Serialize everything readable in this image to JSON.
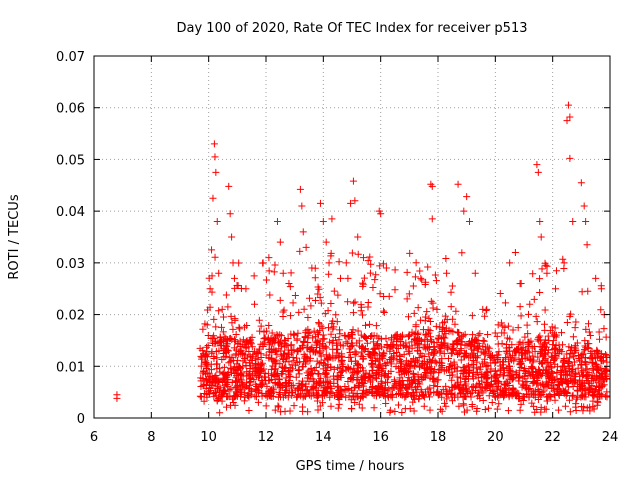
{
  "chart_data": {
    "type": "scatter",
    "title": "Day 100 of 2020, Rate Of TEC Index for receiver p513",
    "xlabel": "GPS time / hours",
    "ylabel": "ROTI / TECUs",
    "xlim": [
      6,
      24
    ],
    "ylim": [
      0,
      0.07
    ],
    "xticks": [
      "6",
      "8",
      "10",
      "12",
      "14",
      "16",
      "18",
      "20",
      "22",
      "24"
    ],
    "yticks": [
      "0",
      "0.01",
      "0.02",
      "0.03",
      "0.04",
      "0.05",
      "0.06",
      "0.07"
    ],
    "grid": true,
    "marker": "+",
    "color": "#ff0000",
    "series": [
      {
        "points": [
          [
            6.8,
            0.0045
          ],
          [
            6.8,
            0.0038
          ],
          [
            9.9,
            0.012
          ],
          [
            9.95,
            0.018
          ],
          [
            10.05,
            0.025
          ],
          [
            10.1,
            0.0325
          ],
          [
            10.15,
            0.0425
          ],
          [
            10.2,
            0.053
          ],
          [
            10.22,
            0.0505
          ],
          [
            10.25,
            0.0475
          ],
          [
            10.3,
            0.038
          ],
          [
            10.35,
            0.028
          ],
          [
            10.7,
            0.0448
          ],
          [
            10.75,
            0.0395
          ],
          [
            10.8,
            0.035
          ],
          [
            10.85,
            0.03
          ],
          [
            10.9,
            0.027
          ],
          [
            11.3,
            0.025
          ],
          [
            11.6,
            0.022
          ],
          [
            11.9,
            0.03
          ],
          [
            12.1,
            0.031
          ],
          [
            12.4,
            0.038
          ],
          [
            12.5,
            0.034
          ],
          [
            12.6,
            0.028
          ],
          [
            12.8,
            0.026
          ],
          [
            13.2,
            0.0442
          ],
          [
            13.25,
            0.041
          ],
          [
            13.3,
            0.036
          ],
          [
            13.4,
            0.033
          ],
          [
            13.6,
            0.029
          ],
          [
            13.9,
            0.0415
          ],
          [
            14.0,
            0.038
          ],
          [
            14.1,
            0.034
          ],
          [
            14.2,
            0.03
          ],
          [
            14.3,
            0.0385
          ],
          [
            14.6,
            0.027
          ],
          [
            14.8,
            0.03
          ],
          [
            14.95,
            0.0415
          ],
          [
            15.05,
            0.0458
          ],
          [
            15.1,
            0.042
          ],
          [
            15.2,
            0.035
          ],
          [
            15.4,
            0.031
          ],
          [
            15.95,
            0.04
          ],
          [
            16.0,
            0.0395
          ],
          [
            16.1,
            0.0298
          ],
          [
            16.2,
            0.029
          ],
          [
            16.5,
            0.0248
          ],
          [
            17.0,
            0.024
          ],
          [
            17.4,
            0.027
          ],
          [
            17.75,
            0.0452
          ],
          [
            17.8,
            0.0448
          ],
          [
            17.8,
            0.0385
          ],
          [
            18.3,
            0.028
          ],
          [
            18.7,
            0.0452
          ],
          [
            18.9,
            0.04
          ],
          [
            19.0,
            0.0428
          ],
          [
            19.1,
            0.038
          ],
          [
            19.3,
            0.028
          ],
          [
            19.7,
            0.021
          ],
          [
            20.1,
            0.018
          ],
          [
            20.5,
            0.03
          ],
          [
            20.7,
            0.032
          ],
          [
            20.9,
            0.026
          ],
          [
            21.2,
            0.022
          ],
          [
            21.45,
            0.049
          ],
          [
            21.5,
            0.0475
          ],
          [
            21.55,
            0.038
          ],
          [
            21.6,
            0.035
          ],
          [
            21.8,
            0.028
          ],
          [
            22.1,
            0.025
          ],
          [
            22.4,
            0.03
          ],
          [
            22.5,
            0.0575
          ],
          [
            22.55,
            0.0605
          ],
          [
            22.6,
            0.0582
          ],
          [
            22.6,
            0.0502
          ],
          [
            22.7,
            0.038
          ],
          [
            23.0,
            0.0455
          ],
          [
            23.1,
            0.041
          ],
          [
            23.15,
            0.038
          ],
          [
            23.2,
            0.0335
          ],
          [
            23.5,
            0.027
          ],
          [
            23.7,
            0.025
          ],
          [
            23.8,
            0.02
          ]
        ],
        "dense_band": {
          "x_range": [
            9.7,
            23.9
          ],
          "lower_min": 0.001,
          "lower_typical": 0.004,
          "upper_typical": [
            [
              9.7,
              0.017
            ],
            [
              10.2,
              0.022
            ],
            [
              11.0,
              0.02
            ],
            [
              12.0,
              0.021
            ],
            [
              13.0,
              0.022
            ],
            [
              14.0,
              0.025
            ],
            [
              15.0,
              0.023
            ],
            [
              16.0,
              0.021
            ],
            [
              17.0,
              0.022
            ],
            [
              18.0,
              0.024
            ],
            [
              19.0,
              0.022
            ],
            [
              20.0,
              0.017
            ],
            [
              21.0,
              0.02
            ],
            [
              22.0,
              0.022
            ],
            [
              23.0,
              0.019
            ],
            [
              23.9,
              0.017
            ]
          ]
        }
      }
    ]
  }
}
